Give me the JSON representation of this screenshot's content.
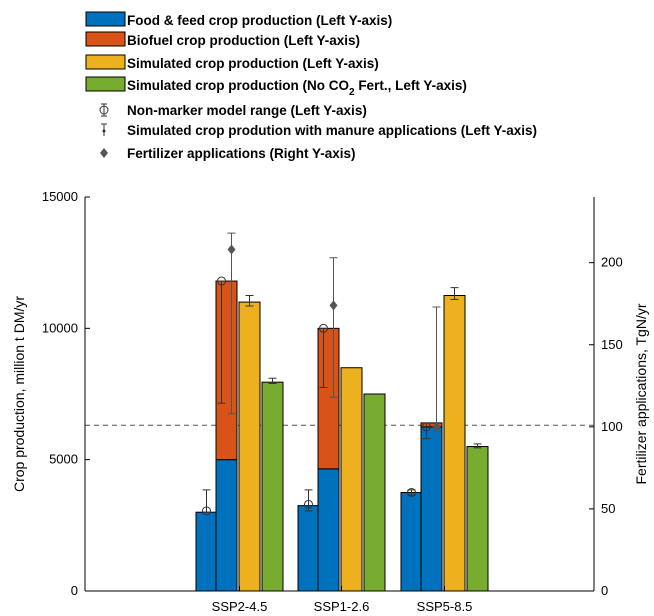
{
  "chart_data": {
    "type": "bar",
    "categories": [
      "SSP2-4.5",
      "SSP1-2.6",
      "SSP5-8.5"
    ],
    "ylabel": "Crop production, million t DM/yr",
    "ylabel_right": "Fertilizer applications, TgN/yr",
    "ylim": [
      0,
      15000
    ],
    "ylim_right": [
      0,
      240
    ],
    "yticks": [
      "0",
      "5000",
      "10000",
      "15000"
    ],
    "yticks_right": [
      "0",
      "50",
      "100",
      "150",
      "200"
    ],
    "reference_line_right": 101,
    "legend": {
      "placement": "top-left",
      "entries": [
        "Food & feed crop production (Left Y-axis)",
        "Biofuel crop production (Left Y-axis)",
        "Simulated crop production (Left Y-axis)",
        "Simulated crop production (No CO",
        "Non-marker model range (Left Y-axis)",
        "Simulated crop prodution with manure applications (Left Y-axis)",
        "Fertilizer applications (Right Y-axis)"
      ],
      "entry4_sub": "2",
      "entry4_tail": " Fert., Left Y-axis)"
    },
    "colors": {
      "food": "#0072BD",
      "biofuel": "#D95319",
      "simulated": "#EDB120",
      "no_co2": "#77AC30",
      "marker": "#555555"
    },
    "series": [
      {
        "name": "Food & feed crop production (Left Y-axis)",
        "values": [
          3000,
          3250,
          3750
        ]
      },
      {
        "name": "Food & feed crop production (Left Y-axis)",
        "values": [
          5000,
          4650,
          6250
        ]
      },
      {
        "name": "Biofuel crop production (Left Y-axis)",
        "values": [
          6800,
          5350,
          150
        ]
      },
      {
        "name": "Simulated crop production (Left Y-axis)",
        "values": [
          11000,
          8500,
          11250
        ]
      },
      {
        "name": "Simulated crop production (No CO2 Fert., Left Y-axis)",
        "values": [
          7950,
          7500,
          5500
        ]
      }
    ],
    "non_marker_range": [
      {
        "bar": 0,
        "center": 3050,
        "low": 3000,
        "high": 3850
      },
      {
        "bar": 0,
        "center": 3300,
        "low": 3050,
        "high": 3850
      },
      {
        "bar": 0,
        "center": 3750,
        "low": 3650,
        "high": 3850
      }
    ],
    "bar2_range": [
      {
        "center": 11800,
        "low": 7150,
        "high": 11800
      },
      {
        "center": 10000,
        "low": 7750,
        "high": 10000
      },
      {
        "center": 6250,
        "low": 5800,
        "high": 6400
      }
    ],
    "manure_errors": [
      {
        "bar": "simulated",
        "low": 10850,
        "high": 11250
      },
      {
        "bar": "simulated",
        "low": 8500,
        "high": 8500
      },
      {
        "bar": "simulated",
        "low": 11100,
        "high": 11550
      },
      {
        "bar": "no_co2",
        "low": 7900,
        "high": 8100
      },
      {
        "bar": "no_co2",
        "low": 7500,
        "high": 7500
      },
      {
        "bar": "no_co2",
        "low": 5450,
        "high": 5600
      }
    ],
    "fertilizer": [
      {
        "value": 208,
        "low": 108,
        "high": 218
      },
      {
        "value": 174,
        "low": 118,
        "high": 203
      },
      {
        "value": 100,
        "low": 97,
        "high": 173
      }
    ]
  }
}
